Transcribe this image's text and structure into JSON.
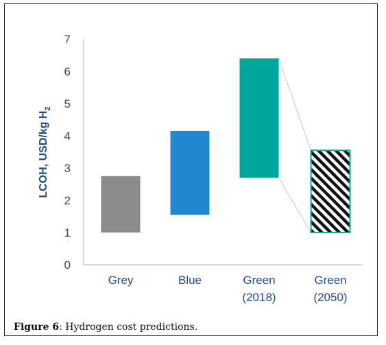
{
  "caption": {
    "label": "Figure 6",
    "text": ": Hydrogen cost predictions."
  },
  "chart_data": {
    "type": "bar",
    "subtype": "floating-range",
    "ylabel": "LCOH, USD/kg H",
    "ylabel_subscript": "2",
    "ylim": [
      0,
      7
    ],
    "yticks": [
      0,
      1,
      2,
      3,
      4,
      5,
      6,
      7
    ],
    "grid": false,
    "categories": [
      {
        "label_lines": [
          "Grey"
        ],
        "low": 1.0,
        "high": 2.75,
        "color": "#8a8a8a",
        "pattern": "solid"
      },
      {
        "label_lines": [
          "Blue"
        ],
        "low": 1.55,
        "high": 4.15,
        "color": "#1f8ad2",
        "pattern": "solid"
      },
      {
        "label_lines": [
          "Green",
          "(2018)"
        ],
        "low": 2.7,
        "high": 6.4,
        "color": "#00a89c",
        "pattern": "solid"
      },
      {
        "label_lines": [
          "Green",
          "(2050)"
        ],
        "low": 1.0,
        "high": 3.55,
        "color": "#1aa59a",
        "pattern": "hatched"
      }
    ],
    "connector": {
      "from": 2,
      "to": 3,
      "color": "#c8c8c8"
    }
  }
}
